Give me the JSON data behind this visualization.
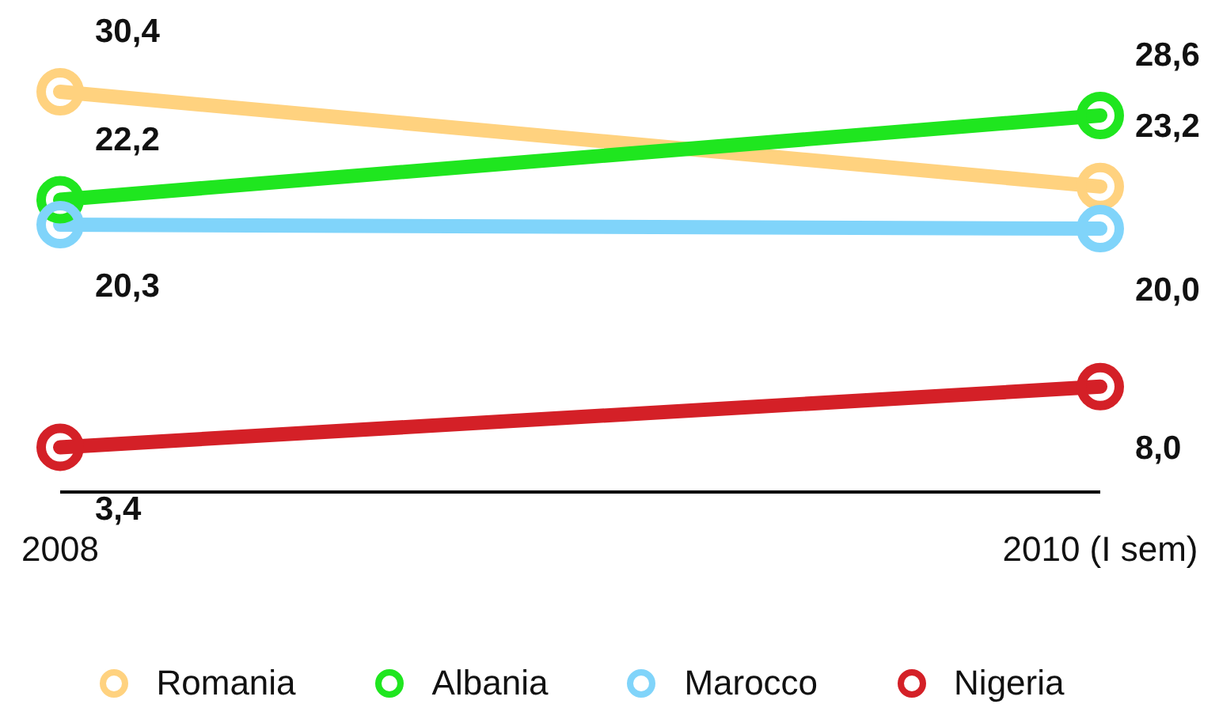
{
  "chart_data": {
    "type": "line",
    "categories": [
      "2008",
      "2010 (I sem)"
    ],
    "marker": "circle",
    "legend": "bottom",
    "grid": false,
    "tick_labels": "x",
    "series": [
      {
        "name": "Romania",
        "color": "#ffd27f",
        "values": [
          30.4,
          23.2
        ],
        "value_labels": [
          "30,4",
          "23,2"
        ]
      },
      {
        "name": "Albania",
        "color": "#1fe61f",
        "values": [
          22.2,
          28.6
        ],
        "value_labels": [
          "22,2",
          "28,6"
        ]
      },
      {
        "name": "Marocco",
        "color": "#80d4fa",
        "values": [
          20.3,
          20.0
        ],
        "value_labels": [
          "20,3",
          "20,0"
        ]
      },
      {
        "name": "Nigeria",
        "color": "#d42027",
        "values": [
          3.4,
          8.0
        ],
        "value_labels": [
          "3,4",
          "8,0"
        ]
      }
    ]
  }
}
